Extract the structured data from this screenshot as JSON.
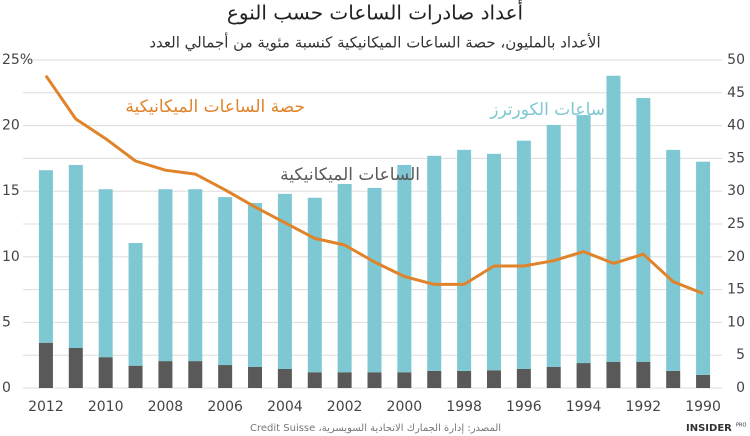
{
  "chart_data": {
    "type": "bar",
    "title": "أعداد صادرات الساعات حسب النوع",
    "subtitle": "الأعداد بالمليون، حصة الساعات الميكانيكية كنسبة مئوية من أجمالي العدد",
    "source": "المصدر: إدارة الجمارك الاتحادية السويسرية، Credit Suisse",
    "brand": "INSIDER",
    "brand_sub": "PRO",
    "stacked": true,
    "grid": true,
    "categories": [
      "2012",
      null,
      "2010",
      null,
      "2008",
      null,
      "2006",
      null,
      "2004",
      null,
      "2002",
      null,
      "2000",
      null,
      "1998",
      null,
      "1996",
      null,
      "1994",
      null,
      "1992",
      null,
      "1990"
    ],
    "series": [
      {
        "name": "الساعات الميكانيكية",
        "color": "#595959",
        "values": [
          6.9,
          6.1,
          4.7,
          3.4,
          4.1,
          4.1,
          3.5,
          3.2,
          2.9,
          2.4,
          2.4,
          2.4,
          2.4,
          2.6,
          2.6,
          2.7,
          2.9,
          3.2,
          3.8,
          4.0,
          4.0,
          2.6,
          2.0
        ]
      },
      {
        "name": "ساعات الكورترز",
        "color": "#7ec8d3",
        "values": [
          26.3,
          27.9,
          25.6,
          18.7,
          26.2,
          26.2,
          25.6,
          25.0,
          26.7,
          26.6,
          28.7,
          28.1,
          31.6,
          32.8,
          33.7,
          33.0,
          34.8,
          36.9,
          37.8,
          43.6,
          40.2,
          33.7,
          32.5
        ]
      },
      {
        "name": "حصة الساعات الميكانيكية",
        "color": "#e0832a",
        "type": "line",
        "axis": "y2",
        "values": [
          23.8,
          20.5,
          19.0,
          17.3,
          16.6,
          16.3,
          15.1,
          13.8,
          12.6,
          11.4,
          10.9,
          9.6,
          8.5,
          7.9,
          7.9,
          9.3,
          9.3,
          9.7,
          10.4,
          9.5,
          10.2,
          8.1,
          7.2
        ]
      }
    ],
    "ylim": [
      0,
      50
    ],
    "yticks": [
      0,
      5,
      10,
      15,
      20,
      25,
      30,
      35,
      40,
      45,
      50
    ],
    "y2lim": [
      0,
      25
    ],
    "y2ticks": [
      0,
      5,
      10,
      15,
      20,
      {
        "value": 25,
        "label": "25%"
      }
    ]
  }
}
